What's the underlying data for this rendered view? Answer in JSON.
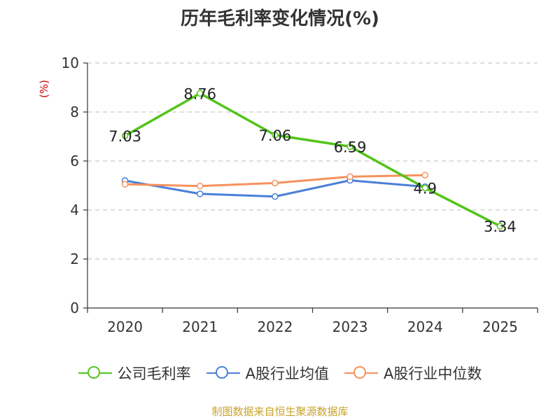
{
  "chart_data": {
    "type": "line",
    "title": "历年毛利率变化情况(%)",
    "ylabel": "(%)",
    "categories": [
      "2020",
      "2021",
      "2022",
      "2023",
      "2024",
      "2025"
    ],
    "ylim": [
      0,
      10
    ],
    "yticks": [
      "0",
      "2",
      "4",
      "6",
      "8",
      "10"
    ],
    "grid": true,
    "legend_position": "bottom",
    "series": [
      {
        "name": "公司毛利率",
        "color": "#52c41a",
        "values": [
          7.03,
          8.76,
          7.06,
          6.59,
          4.9,
          3.34
        ],
        "labels": [
          "7.03",
          "8.76",
          "7.06",
          "6.59",
          "4.9",
          "3.34"
        ]
      },
      {
        "name": "A股行业均值",
        "color": "#4a7fd8",
        "values": [
          5.2,
          4.66,
          4.55,
          5.21,
          4.95,
          null
        ]
      },
      {
        "name": "A股行业中位数",
        "color": "#f5925d",
        "values": [
          5.05,
          4.98,
          5.1,
          5.36,
          5.42,
          null
        ]
      }
    ]
  },
  "footer": {
    "source": "制图数据来自恒生聚源数据库"
  }
}
